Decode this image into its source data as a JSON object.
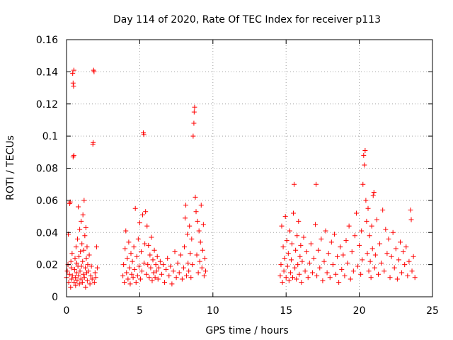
{
  "chart_data": {
    "type": "scatter",
    "title": "Day 114 of 2020, Rate Of TEC Index for receiver p113",
    "xlabel": "GPS time / hours",
    "ylabel": "ROTI / TECUs",
    "xlim": [
      0,
      25
    ],
    "ylim": [
      0,
      0.16
    ],
    "xticks": [
      0,
      5,
      10,
      15,
      20,
      25
    ],
    "xtick_labels": [
      "0",
      "5",
      "10",
      "15",
      "20",
      "25"
    ],
    "yticks": [
      0,
      0.02,
      0.04,
      0.06,
      0.08,
      0.1,
      0.12,
      0.14,
      0.16
    ],
    "ytick_labels": [
      "0",
      "0.02",
      "0.04",
      "0.06",
      "0.08",
      "0.1",
      "0.12",
      "0.14",
      "0.16"
    ],
    "grid": true,
    "marker": "+",
    "marker_color": "#ff0000",
    "series": [
      {
        "name": "ROTI",
        "points": [
          [
            0.0,
            0.012
          ],
          [
            0.05,
            0.016
          ],
          [
            0.1,
            0.02
          ],
          [
            0.12,
            0.039
          ],
          [
            0.15,
            0.009
          ],
          [
            0.2,
            0.014
          ],
          [
            0.22,
            0.058
          ],
          [
            0.25,
            0.059
          ],
          [
            0.28,
            0.006
          ],
          [
            0.3,
            0.022
          ],
          [
            0.32,
            0.018
          ],
          [
            0.35,
            0.011
          ],
          [
            0.38,
            0.027
          ],
          [
            0.4,
            0.013
          ],
          [
            0.42,
            0.139
          ],
          [
            0.45,
            0.133
          ],
          [
            0.45,
            0.087
          ],
          [
            0.48,
            0.131
          ],
          [
            0.5,
            0.088
          ],
          [
            0.5,
            0.141
          ],
          [
            0.52,
            0.009
          ],
          [
            0.55,
            0.017
          ],
          [
            0.58,
            0.024
          ],
          [
            0.6,
            0.012
          ],
          [
            0.62,
            0.007
          ],
          [
            0.65,
            0.031
          ],
          [
            0.68,
            0.015
          ],
          [
            0.7,
            0.021
          ],
          [
            0.72,
            0.01
          ],
          [
            0.75,
            0.036
          ],
          [
            0.78,
            0.019
          ],
          [
            0.8,
            0.056
          ],
          [
            0.82,
            0.013
          ],
          [
            0.85,
            0.025
          ],
          [
            0.88,
            0.008
          ],
          [
            0.9,
            0.042
          ],
          [
            0.92,
            0.016
          ],
          [
            0.95,
            0.028
          ],
          [
            0.98,
            0.011
          ],
          [
            1.0,
            0.047
          ],
          [
            1.02,
            0.019
          ],
          [
            1.05,
            0.033
          ],
          [
            1.08,
            0.009
          ],
          [
            1.1,
            0.022
          ],
          [
            1.12,
            0.051
          ],
          [
            1.15,
            0.014
          ],
          [
            1.18,
            0.029
          ],
          [
            1.2,
            0.06
          ],
          [
            1.22,
            0.012
          ],
          [
            1.25,
            0.038
          ],
          [
            1.28,
            0.018
          ],
          [
            1.3,
            0.006
          ],
          [
            1.32,
            0.043
          ],
          [
            1.35,
            0.024
          ],
          [
            1.38,
            0.015
          ],
          [
            1.4,
            0.031
          ],
          [
            1.42,
            0.01
          ],
          [
            1.45,
            0.02
          ],
          [
            1.5,
            0.016
          ],
          [
            1.55,
            0.026
          ],
          [
            1.6,
            0.008
          ],
          [
            1.65,
            0.013
          ],
          [
            1.7,
            0.019
          ],
          [
            1.75,
            0.011
          ],
          [
            1.8,
            0.095
          ],
          [
            1.82,
            0.096
          ],
          [
            1.85,
            0.141
          ],
          [
            1.88,
            0.14
          ],
          [
            1.9,
            0.009
          ],
          [
            1.95,
            0.015
          ],
          [
            2.0,
            0.012
          ],
          [
            2.05,
            0.031
          ],
          [
            2.1,
            0.018
          ],
          [
            3.85,
            0.013
          ],
          [
            3.9,
            0.02
          ],
          [
            3.95,
            0.009
          ],
          [
            4.0,
            0.03
          ],
          [
            4.05,
            0.041
          ],
          [
            4.1,
            0.015
          ],
          [
            4.15,
            0.024
          ],
          [
            4.2,
            0.011
          ],
          [
            4.25,
            0.034
          ],
          [
            4.3,
            0.018
          ],
          [
            4.35,
            0.008
          ],
          [
            4.4,
            0.027
          ],
          [
            4.45,
            0.014
          ],
          [
            4.5,
            0.022
          ],
          [
            4.55,
            0.012
          ],
          [
            4.6,
            0.031
          ],
          [
            4.65,
            0.017
          ],
          [
            4.7,
            0.055
          ],
          [
            4.75,
            0.009
          ],
          [
            4.8,
            0.025
          ],
          [
            4.85,
            0.013
          ],
          [
            4.9,
            0.036
          ],
          [
            4.95,
            0.019
          ],
          [
            5.0,
            0.046
          ],
          [
            5.05,
            0.011
          ],
          [
            5.1,
            0.028
          ],
          [
            5.15,
            0.016
          ],
          [
            5.2,
            0.051
          ],
          [
            5.25,
            0.102
          ],
          [
            5.28,
            0.101
          ],
          [
            5.3,
            0.021
          ],
          [
            5.35,
            0.033
          ],
          [
            5.4,
            0.053
          ],
          [
            5.45,
            0.014
          ],
          [
            5.5,
            0.044
          ],
          [
            5.55,
            0.02
          ],
          [
            5.6,
            0.032
          ],
          [
            5.65,
            0.012
          ],
          [
            5.7,
            0.026
          ],
          [
            5.75,
            0.018
          ],
          [
            5.8,
            0.037
          ],
          [
            5.85,
            0.01
          ],
          [
            5.9,
            0.023
          ],
          [
            5.95,
            0.015
          ],
          [
            6.0,
            0.029
          ],
          [
            6.05,
            0.012
          ],
          [
            6.1,
            0.02
          ],
          [
            6.15,
            0.016
          ],
          [
            6.2,
            0.025
          ],
          [
            6.25,
            0.011
          ],
          [
            6.3,
            0.018
          ],
          [
            6.4,
            0.022
          ],
          [
            6.5,
            0.014
          ],
          [
            6.6,
            0.02
          ],
          [
            6.7,
            0.009
          ],
          [
            6.8,
            0.017
          ],
          [
            6.9,
            0.024
          ],
          [
            7.0,
            0.013
          ],
          [
            7.1,
            0.019
          ],
          [
            7.2,
            0.008
          ],
          [
            7.3,
            0.016
          ],
          [
            7.4,
            0.028
          ],
          [
            7.5,
            0.012
          ],
          [
            7.6,
            0.021
          ],
          [
            7.7,
            0.015
          ],
          [
            7.8,
            0.026
          ],
          [
            7.9,
            0.011
          ],
          [
            8.0,
            0.018
          ],
          [
            8.05,
            0.031
          ],
          [
            8.1,
            0.049
          ],
          [
            8.15,
            0.057
          ],
          [
            8.2,
            0.013
          ],
          [
            8.25,
            0.039
          ],
          [
            8.3,
            0.021
          ],
          [
            8.35,
            0.016
          ],
          [
            8.4,
            0.044
          ],
          [
            8.45,
            0.027
          ],
          [
            8.5,
            0.012
          ],
          [
            8.55,
            0.036
          ],
          [
            8.6,
            0.02
          ],
          [
            8.65,
            0.1
          ],
          [
            8.7,
            0.108
          ],
          [
            8.72,
            0.115
          ],
          [
            8.75,
            0.118
          ],
          [
            8.8,
            0.062
          ],
          [
            8.85,
            0.053
          ],
          [
            8.9,
            0.026
          ],
          [
            8.95,
            0.047
          ],
          [
            9.0,
            0.015
          ],
          [
            9.05,
            0.041
          ],
          [
            9.1,
            0.022
          ],
          [
            9.15,
            0.034
          ],
          [
            9.2,
            0.057
          ],
          [
            9.25,
            0.018
          ],
          [
            9.3,
            0.029
          ],
          [
            9.35,
            0.045
          ],
          [
            9.4,
            0.013
          ],
          [
            9.45,
            0.024
          ],
          [
            9.5,
            0.016
          ],
          [
            14.6,
            0.013
          ],
          [
            14.65,
            0.02
          ],
          [
            14.7,
            0.044
          ],
          [
            14.75,
            0.009
          ],
          [
            14.8,
            0.031
          ],
          [
            14.85,
            0.016
          ],
          [
            14.9,
            0.024
          ],
          [
            14.95,
            0.05
          ],
          [
            15.0,
            0.012
          ],
          [
            15.05,
            0.035
          ],
          [
            15.1,
            0.019
          ],
          [
            15.15,
            0.027
          ],
          [
            15.2,
            0.01
          ],
          [
            15.25,
            0.041
          ],
          [
            15.3,
            0.015
          ],
          [
            15.35,
            0.023
          ],
          [
            15.4,
            0.033
          ],
          [
            15.45,
            0.012
          ],
          [
            15.5,
            0.052
          ],
          [
            15.55,
            0.07
          ],
          [
            15.6,
            0.018
          ],
          [
            15.65,
            0.029
          ],
          [
            15.7,
            0.011
          ],
          [
            15.75,
            0.038
          ],
          [
            15.8,
            0.02
          ],
          [
            15.85,
            0.047
          ],
          [
            15.9,
            0.014
          ],
          [
            15.95,
            0.025
          ],
          [
            16.0,
            0.032
          ],
          [
            16.05,
            0.009
          ],
          [
            16.1,
            0.022
          ],
          [
            16.2,
            0.037
          ],
          [
            16.3,
            0.016
          ],
          [
            16.4,
            0.028
          ],
          [
            16.5,
            0.012
          ],
          [
            16.6,
            0.021
          ],
          [
            16.7,
            0.033
          ],
          [
            16.8,
            0.015
          ],
          [
            16.9,
            0.024
          ],
          [
            17.0,
            0.045
          ],
          [
            17.05,
            0.07
          ],
          [
            17.1,
            0.013
          ],
          [
            17.2,
            0.029
          ],
          [
            17.3,
            0.018
          ],
          [
            17.4,
            0.036
          ],
          [
            17.5,
            0.01
          ],
          [
            17.6,
            0.022
          ],
          [
            17.7,
            0.041
          ],
          [
            17.8,
            0.015
          ],
          [
            17.9,
            0.027
          ],
          [
            18.0,
            0.012
          ],
          [
            18.1,
            0.034
          ],
          [
            18.2,
            0.02
          ],
          [
            18.3,
            0.039
          ],
          [
            18.4,
            0.014
          ],
          [
            18.5,
            0.025
          ],
          [
            18.6,
            0.009
          ],
          [
            18.7,
            0.031
          ],
          [
            18.8,
            0.017
          ],
          [
            18.9,
            0.026
          ],
          [
            19.0,
            0.013
          ],
          [
            19.1,
            0.035
          ],
          [
            19.2,
            0.021
          ],
          [
            19.3,
            0.044
          ],
          [
            19.4,
            0.011
          ],
          [
            19.5,
            0.028
          ],
          [
            19.6,
            0.016
          ],
          [
            19.7,
            0.038
          ],
          [
            19.8,
            0.052
          ],
          [
            19.9,
            0.019
          ],
          [
            20.0,
            0.032
          ],
          [
            20.1,
            0.014
          ],
          [
            20.15,
            0.041
          ],
          [
            20.2,
            0.023
          ],
          [
            20.25,
            0.07
          ],
          [
            20.3,
            0.088
          ],
          [
            20.35,
            0.082
          ],
          [
            20.4,
            0.091
          ],
          [
            20.45,
            0.06
          ],
          [
            20.5,
            0.047
          ],
          [
            20.55,
            0.027
          ],
          [
            20.6,
            0.055
          ],
          [
            20.65,
            0.016
          ],
          [
            20.7,
            0.038
          ],
          [
            20.75,
            0.022
          ],
          [
            20.8,
            0.012
          ],
          [
            20.85,
            0.044
          ],
          [
            20.9,
            0.03
          ],
          [
            20.95,
            0.063
          ],
          [
            21.0,
            0.065
          ],
          [
            21.05,
            0.018
          ],
          [
            21.1,
            0.026
          ],
          [
            21.2,
            0.048
          ],
          [
            21.3,
            0.014
          ],
          [
            21.4,
            0.033
          ],
          [
            21.5,
            0.021
          ],
          [
            21.6,
            0.054
          ],
          [
            21.7,
            0.016
          ],
          [
            21.8,
            0.042
          ],
          [
            21.9,
            0.027
          ],
          [
            22.0,
            0.036
          ],
          [
            22.1,
            0.012
          ],
          [
            22.2,
            0.025
          ],
          [
            22.3,
            0.04
          ],
          [
            22.4,
            0.018
          ],
          [
            22.5,
            0.03
          ],
          [
            22.6,
            0.011
          ],
          [
            22.7,
            0.023
          ],
          [
            22.8,
            0.034
          ],
          [
            22.9,
            0.015
          ],
          [
            23.0,
            0.028
          ],
          [
            23.1,
            0.02
          ],
          [
            23.2,
            0.031
          ],
          [
            23.3,
            0.013
          ],
          [
            23.4,
            0.022
          ],
          [
            23.5,
            0.054
          ],
          [
            23.55,
            0.048
          ],
          [
            23.6,
            0.016
          ],
          [
            23.7,
            0.025
          ],
          [
            23.8,
            0.012
          ]
        ]
      }
    ]
  }
}
